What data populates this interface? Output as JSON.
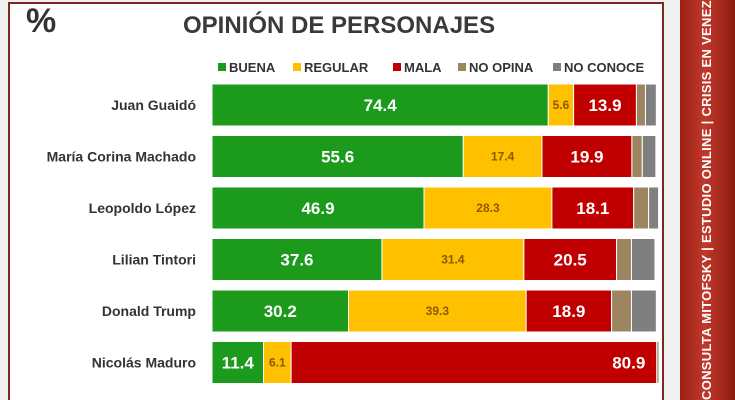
{
  "page": {
    "percent_symbol": "%",
    "sidebar_text": "CONSULTA MITOFSKY | ESTUDIO ONLINE | CRISIS EN VENEZUELA"
  },
  "chart_data": {
    "type": "bar",
    "orientation": "horizontal",
    "stacked": true,
    "title": "OPINIÓN DE PERSONAJES",
    "legend_position": "top",
    "categories": [
      "Juan Guaidó",
      "María Corina Machado",
      "Leopoldo López",
      "Lilian Tintori",
      "Donald Trump",
      "Nicolás Maduro"
    ],
    "series": [
      {
        "name": "BUENA",
        "color": "#1b9a1b",
        "label_color": "#ffffff",
        "values": [
          74.4,
          55.6,
          46.9,
          37.6,
          30.2,
          11.4
        ]
      },
      {
        "name": "REGULAR",
        "color": "#ffc000",
        "label_color": "#8a5a00",
        "values": [
          5.6,
          17.4,
          28.3,
          31.4,
          39.3,
          6.1
        ]
      },
      {
        "name": "MALA",
        "color": "#c00000",
        "label_color": "#ffffff",
        "values": [
          13.9,
          19.9,
          18.1,
          20.5,
          18.9,
          80.9
        ]
      },
      {
        "name": "NO OPINA",
        "color": "#9c8560",
        "label_color": "#ffffff",
        "values": [
          2.0,
          2.3,
          3.3,
          3.3,
          4.4,
          0.5
        ]
      },
      {
        "name": "NO CONOCE",
        "color": "#7f7f7f",
        "label_color": "#ffffff",
        "values": [
          2.4,
          3.0,
          2.2,
          5.2,
          5.5,
          0.2
        ]
      }
    ],
    "xlim": [
      0,
      100
    ]
  }
}
